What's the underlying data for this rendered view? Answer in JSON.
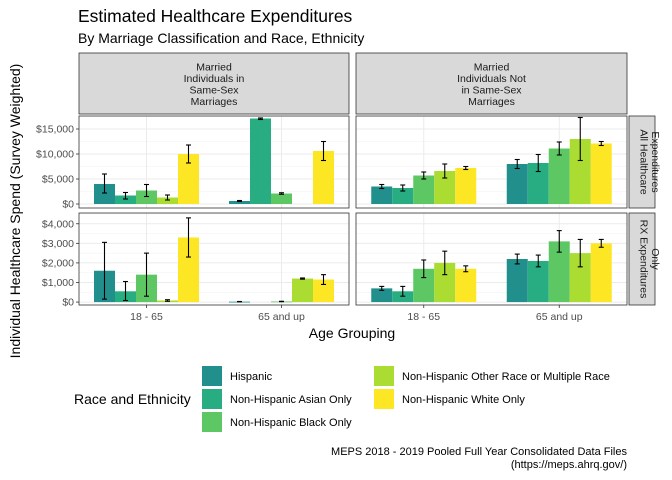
{
  "chart_data": {
    "type": "bar",
    "title": "Estimated Healthcare Expenditures",
    "subtitle": "By Marriage Classification and Race, Ethnicity",
    "xlabel": "Age Grouping",
    "ylabel": "Individual Healthcare Spend (Survey Weighted)",
    "caption_lines": [
      "MEPS 2018 - 2019 Pooled Full Year Consolidated Data Files",
      "(https://meps.ahrq.gov/)"
    ],
    "legend": {
      "title": "Race and Ethnicity",
      "placement": "bottom"
    },
    "series": [
      {
        "name": "Hispanic",
        "color": "#21908C"
      },
      {
        "name": "Non-Hispanic Asian Only",
        "color": "#27AD81"
      },
      {
        "name": "Non-Hispanic Black Only",
        "color": "#5DC863"
      },
      {
        "name": "Non-Hispanic Other Race or Multiple Race",
        "color": "#AADC32"
      },
      {
        "name": "Non-Hispanic White Only",
        "color": "#FDE725"
      }
    ],
    "categories": [
      "18 - 65",
      "65 and up"
    ],
    "columns": [
      {
        "label_lines": [
          "Married",
          "Individuals in",
          "Same-Sex",
          "Marriages"
        ]
      },
      {
        "label_lines": [
          "Married",
          "Individuals Not",
          "in Same-Sex",
          "Marriages"
        ]
      }
    ],
    "rows": [
      {
        "label_lines": [
          "All Healthcare",
          "Expenditures"
        ],
        "ylim": [
          -800,
          17600
        ],
        "ticks": [
          0,
          5000,
          10000,
          15000
        ],
        "tick_labels": [
          "$0",
          "$5,000",
          "$10,000",
          "$15,000"
        ],
        "panels": [
          {
            "values": [
              [
                4000,
                1700,
                2700,
                1300,
                10000
              ],
              [
                600,
                17100,
                2100,
                null,
                10600
              ]
            ],
            "errors": [
              [
                [
                  2200,
                  6000
                ],
                [
                  1000,
                  2300
                ],
                [
                  1500,
                  3900
                ],
                [
                  800,
                  1800
                ],
                [
                  8200,
                  11800
                ]
              ],
              [
                [
                  500,
                  700
                ],
                [
                  16900,
                  17200
                ],
                [
                  1950,
                  2250
                ],
                null,
                [
                  8700,
                  12500
                ]
              ]
            ]
          },
          {
            "values": [
              [
                3500,
                3200,
                5700,
                6600,
                7200
              ],
              [
                8000,
                8200,
                11100,
                13000,
                12100
              ]
            ],
            "errors": [
              [
                [
                  3100,
                  3900
                ],
                [
                  2600,
                  3800
                ],
                [
                  5000,
                  6400
                ],
                [
                  5200,
                  8000
                ],
                [
                  6900,
                  7500
                ]
              ],
              [
                [
                  7100,
                  8900
                ],
                [
                  6500,
                  9900
                ],
                [
                  9800,
                  12400
                ],
                [
                  8700,
                  17300
                ],
                [
                  11700,
                  12500
                ]
              ]
            ]
          }
        ]
      },
      {
        "label_lines": [
          "RX Expenditures",
          "Only"
        ],
        "ylim": [
          -150,
          4550
        ],
        "ticks": [
          0,
          1000,
          2000,
          3000,
          4000
        ],
        "tick_labels": [
          "$0",
          "$1,000",
          "$2,000",
          "$3,000",
          "$4,000"
        ],
        "panels": [
          {
            "values": [
              [
                1600,
                550,
                1400,
                80,
                3300
              ],
              [
                20,
                null,
                30,
                1200,
                1150
              ]
            ],
            "errors": [
              [
                [
                  150,
                  3050
                ],
                [
                  80,
                  1050
                ],
                [
                  300,
                  2500
                ],
                [
                  40,
                  120
                ],
                [
                  2300,
                  4300
                ]
              ],
              [
                [
                  10,
                  30
                ],
                null,
                [
                  20,
                  40
                ],
                [
                  1170,
                  1230
                ],
                [
                  900,
                  1400
                ]
              ]
            ]
          },
          {
            "values": [
              [
                700,
                550,
                1700,
                2000,
                1700
              ],
              [
                2200,
                2100,
                3100,
                2500,
                3000
              ]
            ],
            "errors": [
              [
                [
                  600,
                  800
                ],
                [
                  300,
                  800
                ],
                [
                  1250,
                  2150
                ],
                [
                  1400,
                  2600
                ],
                [
                  1550,
                  1850
                ]
              ],
              [
                [
                  1950,
                  2450
                ],
                [
                  1800,
                  2400
                ],
                [
                  2550,
                  3650
                ],
                [
                  1800,
                  3200
                ],
                [
                  2800,
                  3200
                ]
              ]
            ]
          }
        ]
      }
    ],
    "grid": true
  }
}
